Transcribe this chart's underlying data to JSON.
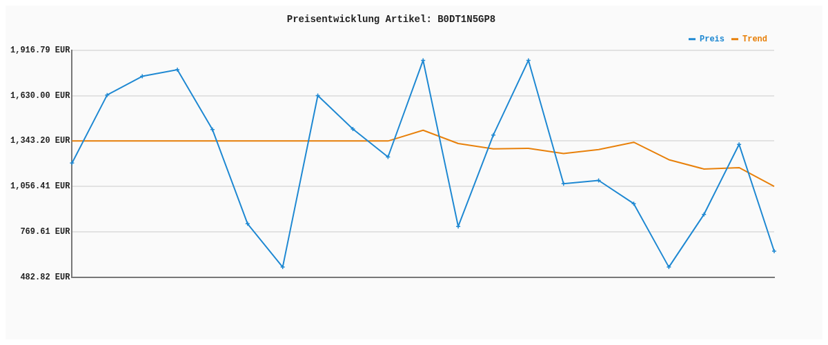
{
  "chart_data": {
    "type": "line",
    "title": "Preisentwicklung Artikel: B0DT1N5GP8",
    "categories": [
      null,
      null,
      null,
      null,
      null,
      null,
      null,
      null,
      null,
      null,
      null,
      null,
      null,
      null,
      null,
      null,
      null,
      null,
      null,
      null,
      null
    ],
    "series": [
      {
        "name": "Preis",
        "color": "#1e88d2",
        "marker": "cross",
        "values": [
          1204,
          1634,
          1752,
          1794,
          1415,
          820,
          546,
          1630,
          1419,
          1242,
          1853,
          803,
          1381,
          1853,
          1073,
          1094,
          947,
          546,
          879,
          1322,
          647
        ]
      },
      {
        "name": "Trend",
        "color": "#e8800a",
        "marker": "none",
        "values": [
          1343,
          1343,
          1343,
          1343,
          1343,
          1343,
          1343,
          1343,
          1343,
          1343,
          1411,
          1327,
          1293,
          1297,
          1264,
          1289,
          1335,
          1225,
          1166,
          1175,
          1056
        ]
      }
    ],
    "ylim": [
      482.82,
      1916.79
    ],
    "yticks": [
      {
        "value": 482.82,
        "label": "482.82 EUR"
      },
      {
        "value": 769.61,
        "label": "769.61 EUR"
      },
      {
        "value": 1056.41,
        "label": "1,056.41 EUR"
      },
      {
        "value": 1343.2,
        "label": "1,343.20 EUR"
      },
      {
        "value": 1630.0,
        "label": "1,630.00 EUR"
      },
      {
        "value": 1916.79,
        "label": "1,916.79 EUR"
      }
    ],
    "grid": "y",
    "legend": "top right",
    "line_style": "solid"
  }
}
